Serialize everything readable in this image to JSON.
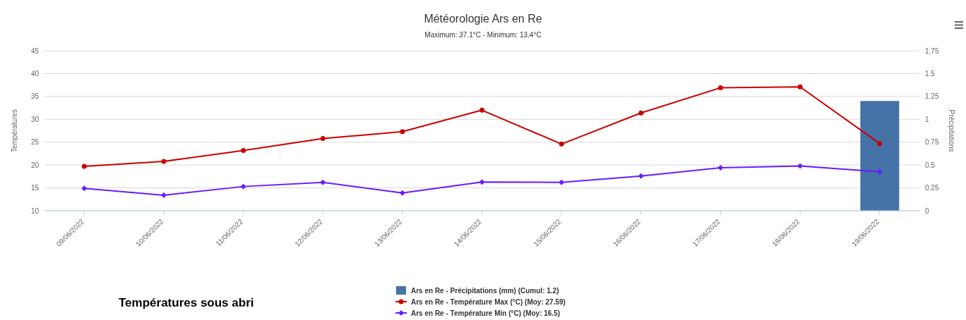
{
  "chart_data": {
    "type": "line",
    "title": "Météorologie Ars en Re",
    "subtitle": "Maximum: 37.1°C - Minimum: 13.4°C",
    "ylabel": "Températures",
    "y2label": "Précipitations",
    "annotations": [
      "Températures sous abri"
    ],
    "categories": [
      "09/06/2022",
      "10/06/2022",
      "11/06/2022",
      "12/06/2022",
      "13/06/2022",
      "14/06/2022",
      "15/06/2022",
      "16/06/2022",
      "17/06/2022",
      "18/06/2022",
      "19/06/2022"
    ],
    "series": [
      {
        "name": "Ars en Re - Précipitations (mm) (Cumul: 1.2)",
        "type": "bar",
        "axis": "y2",
        "color": "#4572a7",
        "values": [
          0,
          0,
          0,
          0,
          0,
          0,
          0,
          0,
          0,
          0,
          1.2
        ]
      },
      {
        "name": "Ars en Re - Température Max (°C) (Moy: 27.59)",
        "color": "#cc0000",
        "marker": "circle",
        "values": [
          19.7,
          20.8,
          23.2,
          25.8,
          27.3,
          32.0,
          24.6,
          31.4,
          36.9,
          37.1,
          24.7
        ]
      },
      {
        "name": "Ars en Re - Température Min (°C) (Moy: 16.5)",
        "color": "#6a1bff",
        "marker": "diamond",
        "values": [
          14.9,
          13.4,
          15.3,
          16.2,
          13.9,
          16.3,
          16.2,
          17.6,
          19.4,
          19.8,
          18.5
        ]
      }
    ],
    "ylim": [
      10,
      45
    ],
    "yticks": [
      10,
      15,
      20,
      25,
      30,
      35,
      40,
      45
    ],
    "y2lim": [
      0,
      1.75
    ],
    "y2ticks": [
      0,
      0.25,
      0.5,
      0.75,
      1,
      1.25,
      1.5,
      1.75
    ],
    "grid": "y",
    "legend": "bottom"
  }
}
